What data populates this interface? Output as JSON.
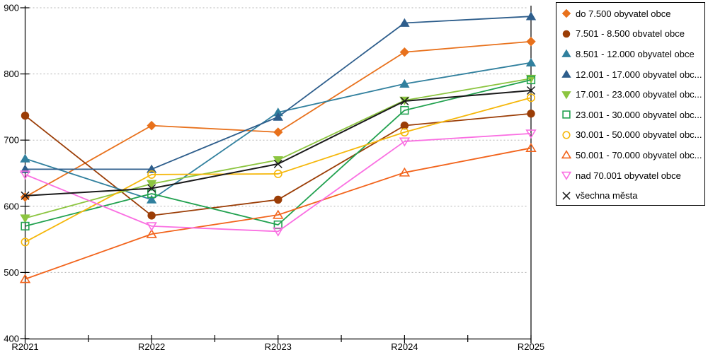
{
  "chart_data": {
    "type": "line",
    "title": "",
    "xlabel": "",
    "ylabel": "",
    "categories": [
      "R2021",
      "R2022",
      "R2023",
      "R2024",
      "R2025"
    ],
    "ylim": [
      400,
      900
    ],
    "y_tick_step": 100,
    "y_tick_labels": [
      "900",
      "800",
      "700",
      "600",
      "500",
      "400"
    ],
    "grid": "horizontal-dotted",
    "legend_position": "right",
    "series": [
      {
        "name": "do 7.500 obyvatel obce",
        "marker": "diamond",
        "fill": "filled",
        "color": "#E8711C",
        "values": [
          614,
          722,
          712,
          833,
          849
        ]
      },
      {
        "name": "7.501 - 8.500 obvatel obce",
        "marker": "circle",
        "fill": "filled",
        "color": "#9B3D06",
        "values": [
          737,
          586,
          610,
          722,
          740
        ]
      },
      {
        "name": "8.501 - 12.000 obyvatel obce",
        "marker": "triangle-up",
        "fill": "filled",
        "color": "#31809E",
        "values": [
          672,
          610,
          742,
          785,
          817
        ]
      },
      {
        "name": "12.001 - 17.000 obyvatel obc...",
        "marker": "triangle-up",
        "fill": "filled",
        "color": "#2E5E8C",
        "values": [
          656,
          656,
          735,
          877,
          887
        ]
      },
      {
        "name": "17.001 - 23.000 obyvatel obc...",
        "marker": "triangle-down",
        "fill": "filled",
        "color": "#8CC540",
        "values": [
          582,
          634,
          670,
          760,
          793
        ]
      },
      {
        "name": "23.001 - 30.000 obyvatel obc...",
        "marker": "square",
        "fill": "open",
        "color": "#21A14F",
        "values": [
          570,
          619,
          572,
          745,
          791
        ]
      },
      {
        "name": "30.001 - 50.000 obyvatel obc...",
        "marker": "circle",
        "fill": "open",
        "color": "#F5B70A",
        "values": [
          546,
          648,
          649,
          712,
          764
        ]
      },
      {
        "name": "50.001 - 70.000 obyvatel obc...",
        "marker": "triangle-up",
        "fill": "open",
        "color": "#F2641C",
        "values": [
          490,
          558,
          587,
          651,
          688
        ]
      },
      {
        "name": "nad 70.001 obyvatel obce",
        "marker": "triangle-down",
        "fill": "open",
        "color": "#FA6FE2",
        "values": [
          648,
          570,
          562,
          698,
          710
        ]
      },
      {
        "name": "všechna města",
        "marker": "x",
        "fill": "open",
        "color": "#1A1A1A",
        "values": [
          616,
          627,
          664,
          759,
          775
        ]
      }
    ]
  }
}
